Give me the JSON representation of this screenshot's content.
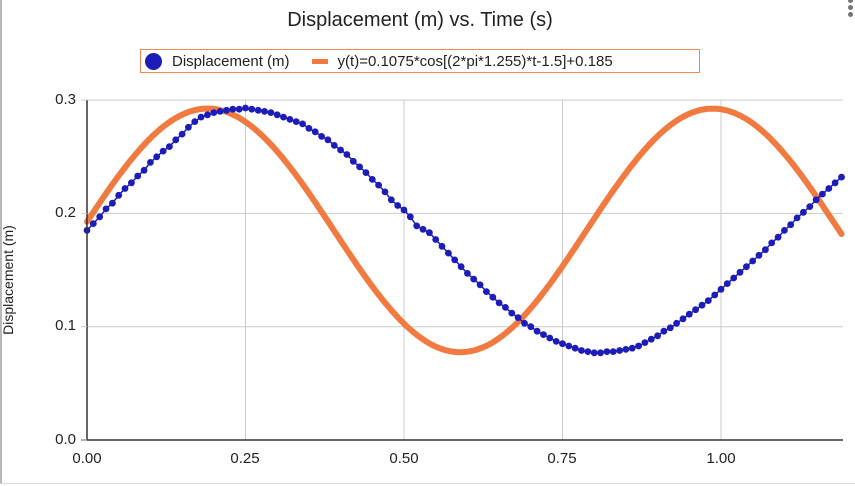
{
  "chart": {
    "title": "Displacement (m) vs. Time (s)",
    "menu_icon": "kebab-menu-icon",
    "legend": [
      {
        "label": "Displacement (m)",
        "color": "#1c1cb8",
        "marker": "circle"
      },
      {
        "label": "y(t)=0.1075*cos[(2*pi*1.255)*t-1.5]+0.185",
        "color": "#f07a40",
        "marker": "line"
      }
    ],
    "ylabel": "Displacement (m)",
    "xlabel": "",
    "yticks": [
      "0.0",
      "0.1",
      "0.2",
      "0.3"
    ],
    "xticks": [
      "0.00",
      "0.25",
      "0.50",
      "0.75",
      "1.00"
    ]
  },
  "chart_data": {
    "type": "scatter",
    "title": "Displacement (m) vs. Time (s)",
    "xlabel": "",
    "ylabel": "Displacement (m)",
    "xlim": [
      0,
      1.193
    ],
    "ylim": [
      0,
      0.3
    ],
    "grid": true,
    "legend_position": "top",
    "x_ticks": [
      0.0,
      0.25,
      0.5,
      0.75,
      1.0
    ],
    "y_ticks": [
      0.0,
      0.1,
      0.2,
      0.3
    ],
    "series": [
      {
        "name": "Displacement (m)",
        "type": "scatter",
        "color": "#1c1cb8",
        "x": [
          0.0,
          0.01,
          0.02,
          0.03,
          0.04,
          0.05,
          0.06,
          0.07,
          0.08,
          0.09,
          0.1,
          0.11,
          0.12,
          0.13,
          0.14,
          0.15,
          0.16,
          0.17,
          0.18,
          0.19,
          0.2,
          0.21,
          0.22,
          0.23,
          0.24,
          0.25,
          0.26,
          0.27,
          0.28,
          0.29,
          0.3,
          0.31,
          0.32,
          0.33,
          0.34,
          0.35,
          0.36,
          0.37,
          0.38,
          0.39,
          0.4,
          0.41,
          0.42,
          0.43,
          0.44,
          0.45,
          0.46,
          0.47,
          0.48,
          0.49,
          0.5,
          0.51,
          0.52,
          0.53,
          0.54,
          0.55,
          0.56,
          0.57,
          0.58,
          0.59,
          0.6,
          0.61,
          0.62,
          0.63,
          0.64,
          0.65,
          0.66,
          0.67,
          0.68,
          0.69,
          0.7,
          0.71,
          0.72,
          0.73,
          0.74,
          0.75,
          0.76,
          0.77,
          0.78,
          0.79,
          0.8,
          0.81,
          0.82,
          0.83,
          0.84,
          0.85,
          0.86,
          0.87,
          0.88,
          0.89,
          0.9,
          0.91,
          0.92,
          0.93,
          0.94,
          0.95,
          0.96,
          0.97,
          0.98,
          0.99,
          1.0,
          1.01,
          1.02,
          1.03,
          1.04,
          1.05,
          1.06,
          1.07,
          1.08,
          1.09,
          1.1,
          1.11,
          1.12,
          1.13,
          1.14,
          1.15,
          1.16,
          1.17,
          1.18,
          1.19
        ],
        "y": [
          0.185,
          0.191,
          0.197,
          0.204,
          0.209,
          0.216,
          0.222,
          0.227,
          0.233,
          0.238,
          0.245,
          0.25,
          0.255,
          0.259,
          0.265,
          0.27,
          0.276,
          0.281,
          0.285,
          0.287,
          0.289,
          0.29,
          0.291,
          0.292,
          0.292,
          0.293,
          0.292,
          0.291,
          0.29,
          0.289,
          0.287,
          0.285,
          0.283,
          0.281,
          0.279,
          0.275,
          0.272,
          0.268,
          0.265,
          0.26,
          0.256,
          0.252,
          0.246,
          0.241,
          0.236,
          0.23,
          0.225,
          0.219,
          0.212,
          0.207,
          0.203,
          0.197,
          0.189,
          0.186,
          0.183,
          0.177,
          0.171,
          0.165,
          0.159,
          0.153,
          0.147,
          0.142,
          0.137,
          0.131,
          0.126,
          0.121,
          0.117,
          0.112,
          0.108,
          0.103,
          0.1,
          0.096,
          0.093,
          0.09,
          0.087,
          0.085,
          0.083,
          0.081,
          0.079,
          0.078,
          0.077,
          0.077,
          0.078,
          0.078,
          0.079,
          0.08,
          0.081,
          0.083,
          0.086,
          0.089,
          0.092,
          0.096,
          0.099,
          0.103,
          0.107,
          0.111,
          0.115,
          0.119,
          0.123,
          0.128,
          0.133,
          0.138,
          0.143,
          0.148,
          0.153,
          0.158,
          0.163,
          0.168,
          0.174,
          0.179,
          0.185,
          0.19,
          0.196,
          0.201,
          0.206,
          0.212,
          0.217,
          0.222,
          0.227,
          0.232
        ]
      },
      {
        "name": "y(t)=0.1075*cos[(2*pi*1.255)*t-1.5]+0.185",
        "type": "line",
        "color": "#f07a40",
        "equation": {
          "A": 0.1075,
          "f": 1.255,
          "phi": -1.5,
          "offset": 0.185
        },
        "x_range": [
          0,
          1.19
        ]
      }
    ]
  }
}
